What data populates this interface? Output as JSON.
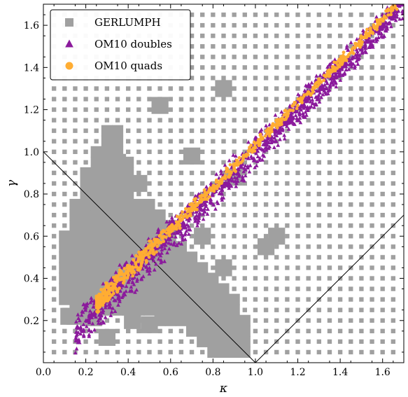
{
  "chart_data": {
    "type": "scatter",
    "xlabel": "κ",
    "ylabel": "γ",
    "xlim": [
      0.0,
      1.7
    ],
    "ylim": [
      0.0,
      1.7
    ],
    "x_ticks": [
      0.0,
      0.2,
      0.4,
      0.6,
      0.8,
      1.0,
      1.2,
      1.4,
      1.6
    ],
    "y_ticks": [
      0.2,
      0.4,
      0.6,
      0.8,
      1.0,
      1.2,
      1.4,
      1.6
    ],
    "x_tick_labels": [
      "0.0",
      "0.2",
      "0.4",
      "0.6",
      "0.8",
      "1.0",
      "1.2",
      "1.4",
      "1.6"
    ],
    "y_tick_labels": [
      "0.2",
      "0.4",
      "0.6",
      "0.8",
      "1.0",
      "1.2",
      "1.4",
      "1.6"
    ],
    "grid": false,
    "legend_position": "top-left",
    "reference_lines": [
      {
        "x": [
          0.0,
          1.0
        ],
        "y": [
          1.0,
          0.0
        ]
      },
      {
        "x": [
          1.0,
          1.7
        ],
        "y": [
          0.0,
          0.7
        ]
      }
    ],
    "series": [
      {
        "name": "GERLUMPH",
        "marker": "square",
        "color": "#a0a0a0",
        "grid_step": 0.05,
        "dense_region": [
          [
            0.2,
            0.18
          ],
          [
            0.1,
            0.3
          ],
          [
            0.1,
            0.6
          ],
          [
            0.15,
            0.75
          ],
          [
            0.2,
            0.9
          ],
          [
            0.3,
            1.1
          ],
          [
            0.38,
            1.15
          ],
          [
            0.4,
            1.0
          ],
          [
            0.42,
            0.8
          ],
          [
            0.55,
            0.72
          ],
          [
            0.65,
            0.6
          ],
          [
            0.8,
            0.45
          ],
          [
            0.9,
            0.35
          ],
          [
            1.0,
            0.15
          ],
          [
            1.0,
            0.05
          ],
          [
            0.8,
            0.05
          ],
          [
            0.7,
            0.15
          ],
          [
            0.55,
            0.2
          ],
          [
            0.35,
            0.22
          ]
        ],
        "sparse_points": [
          [
            0.3,
            0.12
          ],
          [
            0.42,
            0.2
          ],
          [
            0.5,
            0.18
          ],
          [
            0.15,
            0.22
          ],
          [
            0.12,
            0.22
          ],
          [
            0.55,
            1.22
          ],
          [
            0.85,
            1.3
          ],
          [
            0.7,
            0.98
          ],
          [
            0.75,
            0.6
          ],
          [
            0.85,
            0.45
          ],
          [
            1.05,
            0.55
          ],
          [
            0.9,
            0.88
          ],
          [
            0.45,
            0.85
          ],
          [
            0.3,
            0.75
          ],
          [
            1.1,
            0.6
          ],
          [
            0.35,
            0.95
          ]
        ]
      },
      {
        "name": "OM10 doubles",
        "marker": "triangle",
        "color": "#8b1a9c",
        "band": {
          "x_start": 0.15,
          "x_end": 1.7,
          "y_at_start": 0.15,
          "slope": 1.0,
          "width": 0.07
        },
        "points": [
          [
            0.2,
            0.2
          ],
          [
            0.25,
            0.25
          ],
          [
            0.3,
            0.32
          ],
          [
            0.4,
            0.42
          ],
          [
            0.5,
            0.5
          ],
          [
            0.6,
            0.6
          ],
          [
            0.7,
            0.72
          ],
          [
            0.8,
            0.82
          ],
          [
            0.9,
            0.92
          ],
          [
            1.0,
            1.02
          ],
          [
            1.1,
            1.12
          ],
          [
            1.2,
            1.22
          ],
          [
            1.3,
            1.32
          ],
          [
            1.4,
            1.42
          ],
          [
            1.5,
            1.52
          ],
          [
            1.6,
            1.62
          ],
          [
            1.68,
            1.69
          ]
        ]
      },
      {
        "name": "OM10 quads",
        "marker": "circle",
        "color": "#ffad33",
        "band": {
          "x_start": 0.25,
          "x_end": 1.68,
          "y_at_start": 0.28,
          "slope": 1.0,
          "width": 0.03
        },
        "points": [
          [
            0.3,
            0.32
          ],
          [
            0.4,
            0.42
          ],
          [
            0.5,
            0.52
          ],
          [
            0.6,
            0.62
          ],
          [
            0.7,
            0.72
          ],
          [
            0.8,
            0.82
          ],
          [
            0.9,
            0.92
          ],
          [
            1.0,
            1.02
          ],
          [
            1.1,
            1.12
          ],
          [
            1.2,
            1.22
          ],
          [
            1.3,
            1.32
          ],
          [
            1.4,
            1.42
          ],
          [
            1.5,
            1.52
          ],
          [
            1.6,
            1.62
          ]
        ]
      }
    ]
  }
}
